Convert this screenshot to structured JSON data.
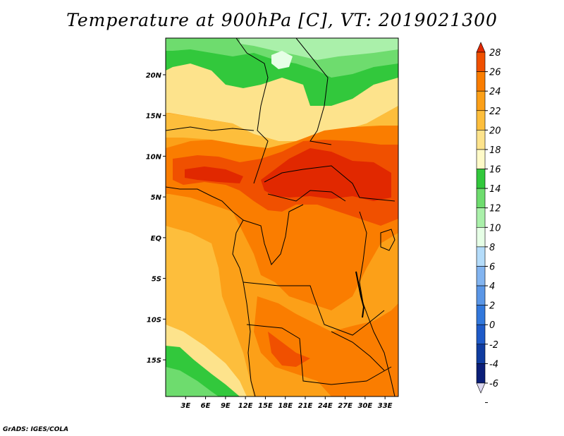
{
  "title": "Temperature at 900hPa [C], VT: 2019021300",
  "credit": "GrADS: IGES/COLA",
  "map": {
    "lat_ticks": [
      "20N",
      "15N",
      "10N",
      "5N",
      "EQ",
      "5S",
      "10S",
      "15S"
    ],
    "lat_values": [
      20,
      15,
      10,
      5,
      0,
      -5,
      -10,
      -15
    ],
    "lon_ticks": [
      "3E",
      "6E",
      "9E",
      "12E",
      "15E",
      "18E",
      "21E",
      "24E",
      "27E",
      "30E",
      "33E"
    ],
    "lon_values": [
      3,
      6,
      9,
      12,
      15,
      18,
      21,
      24,
      27,
      30,
      33
    ],
    "lat_range": [
      -19.5,
      24.5
    ],
    "lon_range": [
      0,
      35
    ]
  },
  "colorbar": {
    "levels": [
      "28",
      "26",
      "24",
      "22",
      "20",
      "18",
      "16",
      "14",
      "12",
      "10",
      "8",
      "6",
      "4",
      "2",
      "0",
      "-2",
      "-4",
      "-6"
    ],
    "colors": [
      "#e12800",
      "#f05000",
      "#fa7d00",
      "#fca018",
      "#fdbe3c",
      "#fde38c",
      "#fffac8",
      "#32c83c",
      "#6edc6e",
      "#aaf0aa",
      "#e6ffe6",
      "#b4dcfa",
      "#82b4f0",
      "#5a96e6",
      "#3278dc",
      "#1e5ac8",
      "#0f3ca0",
      "#0a1e78",
      "#000050"
    ]
  }
}
